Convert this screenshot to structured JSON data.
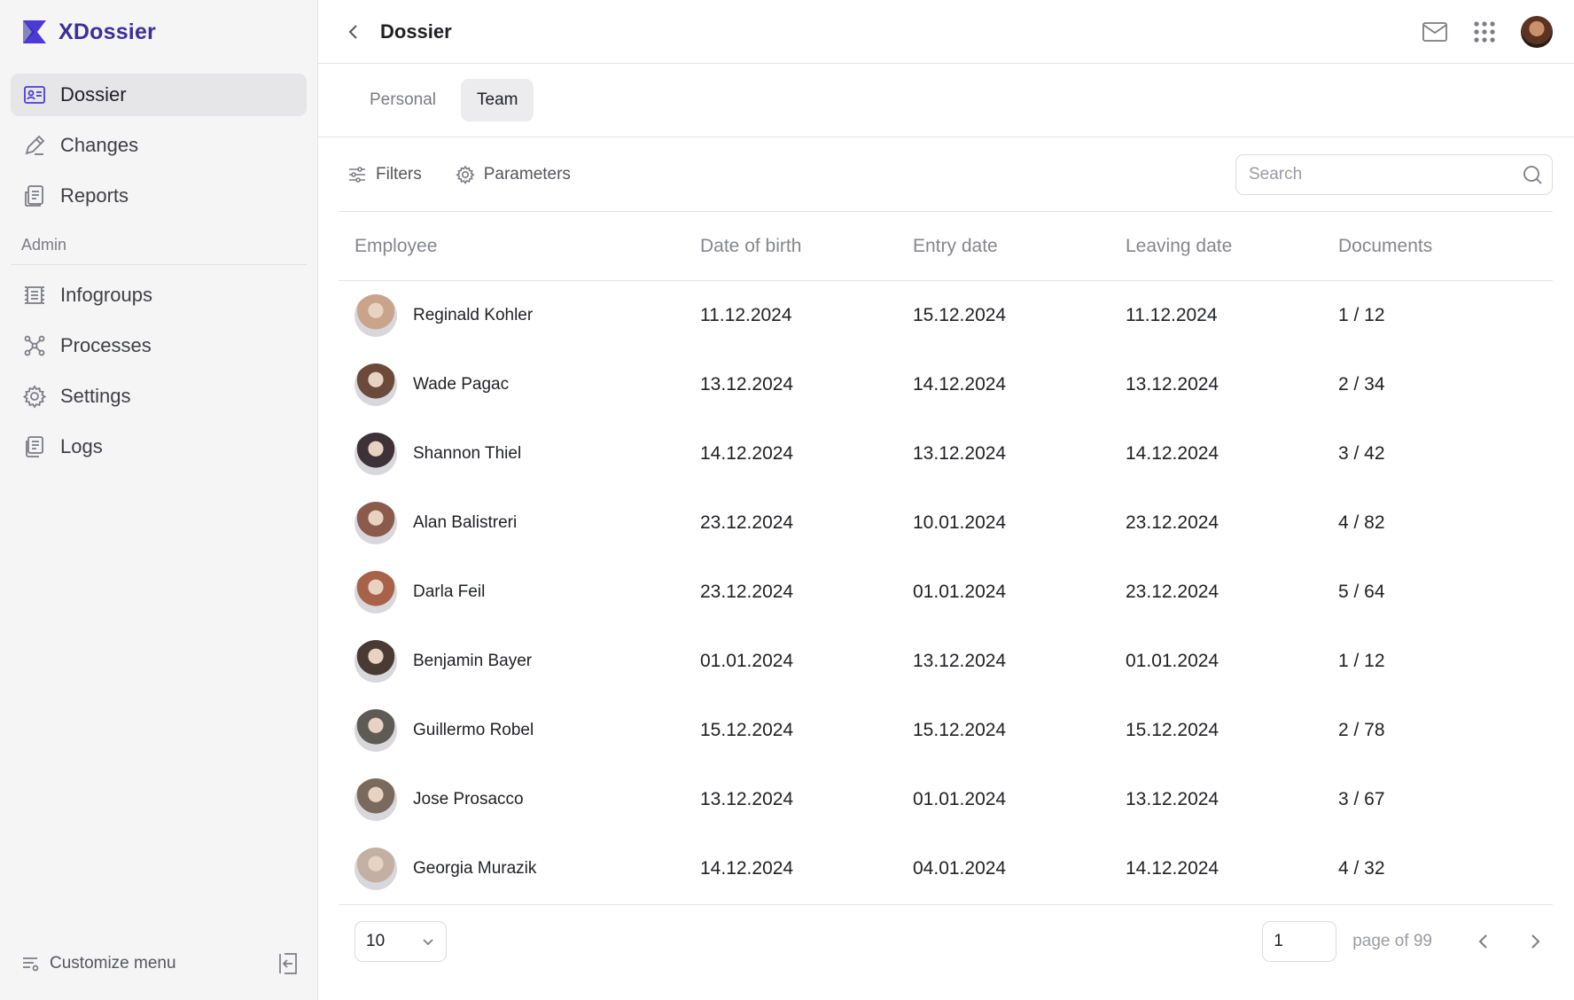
{
  "brand": {
    "name": "XDossier",
    "color": "#3b2f9a"
  },
  "sidebar": {
    "items": [
      {
        "label": "Dossier",
        "icon": "id-card-icon",
        "active": true
      },
      {
        "label": "Changes",
        "icon": "pencil-icon"
      },
      {
        "label": "Reports",
        "icon": "report-icon"
      }
    ],
    "admin_label": "Admin",
    "admin_items": [
      {
        "label": "Infogroups",
        "icon": "infogroups-icon"
      },
      {
        "label": "Processes",
        "icon": "processes-icon"
      },
      {
        "label": "Settings",
        "icon": "gear-icon"
      },
      {
        "label": "Logs",
        "icon": "logs-icon"
      }
    ],
    "customize_label": "Customize menu"
  },
  "header": {
    "title": "Dossier"
  },
  "tabs": [
    {
      "label": "Personal",
      "active": false
    },
    {
      "label": "Team",
      "active": true
    }
  ],
  "toolbar": {
    "filters_label": "Filters",
    "parameters_label": "Parameters",
    "search_placeholder": "Search"
  },
  "table": {
    "columns": [
      "Employee",
      "Date of birth",
      "Entry date",
      "Leaving date",
      "Documents"
    ],
    "rows": [
      {
        "name": "Reginald Kohler",
        "dob": "11.12.2024",
        "entry": "15.12.2024",
        "leaving": "11.12.2024",
        "docs": "1 / 12",
        "avatar_color": "#c9a48a"
      },
      {
        "name": "Wade Pagac",
        "dob": "13.12.2024",
        "entry": "14.12.2024",
        "leaving": "13.12.2024",
        "docs": "2 / 34",
        "avatar_color": "#6b4a3a"
      },
      {
        "name": "Shannon Thiel",
        "dob": "14.12.2024",
        "entry": "13.12.2024",
        "leaving": "14.12.2024",
        "docs": "3 / 42",
        "avatar_color": "#3d3238"
      },
      {
        "name": "Alan Balistreri",
        "dob": "23.12.2024",
        "entry": "10.01.2024",
        "leaving": "23.12.2024",
        "docs": "4 / 82",
        "avatar_color": "#8a5a4a"
      },
      {
        "name": "Darla Feil",
        "dob": "23.12.2024",
        "entry": "01.01.2024",
        "leaving": "23.12.2024",
        "docs": "5 / 64",
        "avatar_color": "#a8624a"
      },
      {
        "name": "Benjamin Bayer",
        "dob": "01.01.2024",
        "entry": "13.12.2024",
        "leaving": "01.01.2024",
        "docs": "1 / 12",
        "avatar_color": "#4a3a34"
      },
      {
        "name": "Guillermo Robel",
        "dob": "15.12.2024",
        "entry": "15.12.2024",
        "leaving": "15.12.2024",
        "docs": "2 / 78",
        "avatar_color": "#5e5a56"
      },
      {
        "name": "Jose Prosacco",
        "dob": "13.12.2024",
        "entry": "01.01.2024",
        "leaving": "13.12.2024",
        "docs": "3 / 67",
        "avatar_color": "#7a6a5e"
      },
      {
        "name": "Georgia Murazik",
        "dob": "14.12.2024",
        "entry": "04.01.2024",
        "leaving": "14.12.2024",
        "docs": "4 / 32",
        "avatar_color": "#c4b0a2"
      }
    ]
  },
  "pagination": {
    "page_size": "10",
    "current_page": "1",
    "page_of_label": "page of 99"
  }
}
